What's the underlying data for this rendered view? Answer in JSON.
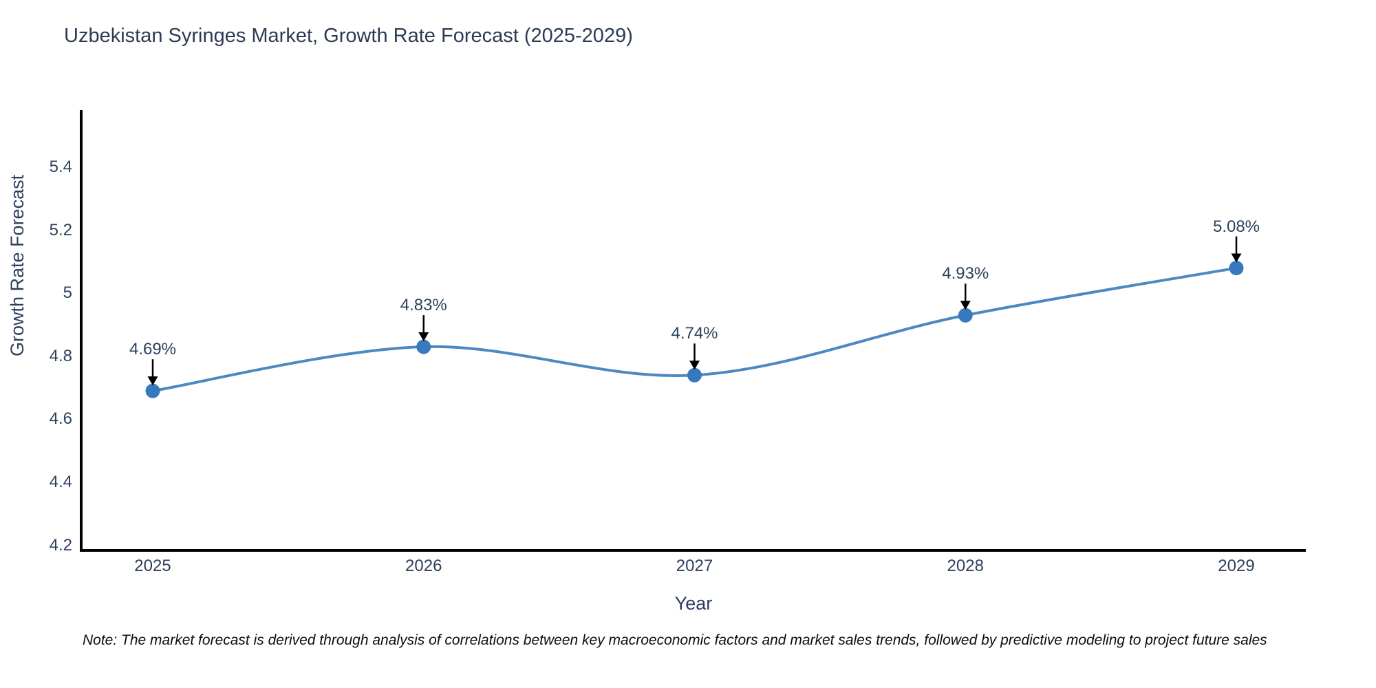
{
  "title": "Uzbekistan Syringes Market, Growth Rate Forecast (2025-2029)",
  "note": "Note: The market forecast is derived through analysis of correlations between key macroeconomic factors and market sales trends, followed by predictive modeling to project future sales",
  "chart_data": {
    "type": "line",
    "title": "Uzbekistan Syringes Market, Growth Rate Forecast (2025-2029)",
    "xlabel": "Year",
    "ylabel": "Growth Rate Forecast",
    "categories": [
      "2025",
      "2026",
      "2027",
      "2028",
      "2029"
    ],
    "values": [
      4.69,
      4.83,
      4.74,
      4.93,
      5.08
    ],
    "point_labels": [
      "4.69%",
      "4.83%",
      "4.74%",
      "4.93%",
      "5.08%"
    ],
    "ytick_labels": [
      "5.4",
      "5.2",
      "5",
      "4.8",
      "4.6",
      "4.4",
      "4.2"
    ],
    "ytick_values": [
      5.4,
      5.2,
      5.0,
      4.8,
      4.6,
      4.4,
      4.2
    ],
    "ylim": [
      4.19,
      5.58
    ],
    "line_shape": "spline",
    "grid": false,
    "legend": "none",
    "colors": {
      "line": "#4c89c0",
      "marker": "#3779be",
      "axis": "#000000",
      "text": "#2e3f5c",
      "title": "#2d3a55",
      "annotation_arrow": "#000000",
      "background": "#ffffff"
    }
  }
}
